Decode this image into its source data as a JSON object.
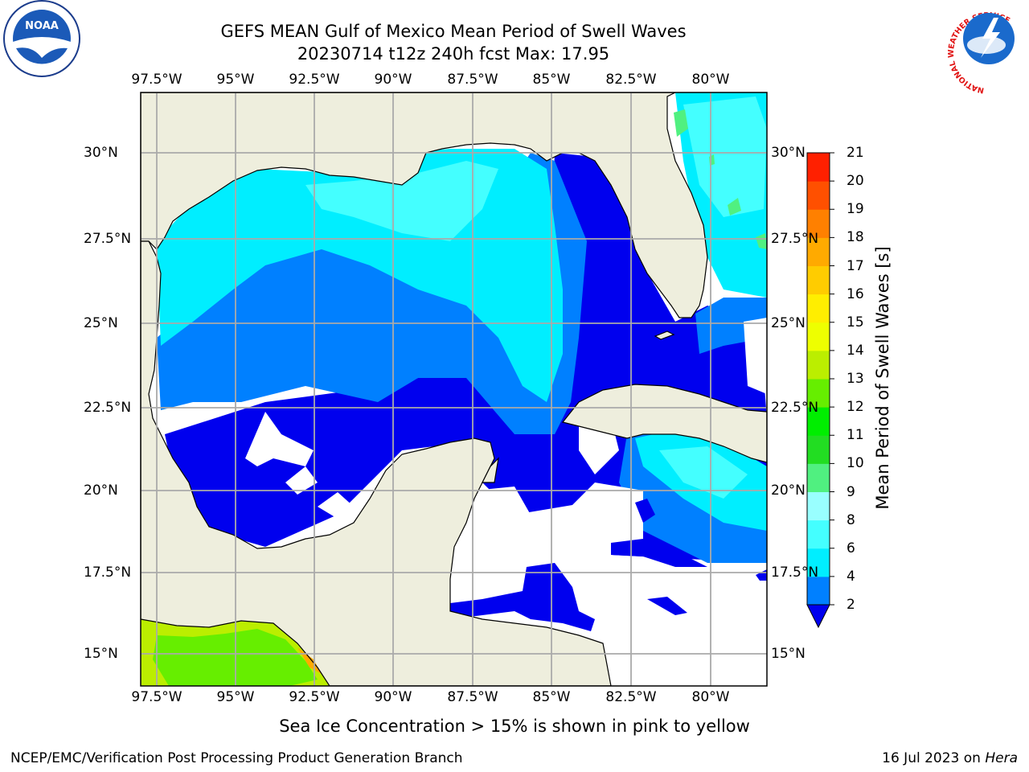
{
  "title": {
    "line1": "GEFS MEAN Gulf of Mexico Mean Period of Swell Waves",
    "line2": "20230714 t12z 240h fcst   Max: 17.95"
  },
  "map": {
    "lon_ticks": [
      "97.5°W",
      "95°W",
      "92.5°W",
      "90°W",
      "87.5°W",
      "85°W",
      "82.5°W",
      "80°W"
    ],
    "lat_ticks": [
      "30°N",
      "27.5°N",
      "25°N",
      "22.5°N",
      "20°N",
      "17.5°N",
      "15°N"
    ],
    "land_color": "#eeeedd",
    "grid": true
  },
  "colorbar": {
    "title": "Mean Period of Swell Waves [s]",
    "levels": [
      "2",
      "4",
      "6",
      "8",
      "9",
      "10",
      "11",
      "12",
      "13",
      "14",
      "15",
      "16",
      "17",
      "18",
      "19",
      "20",
      "21"
    ],
    "colors": [
      "#0000ee",
      "#0080ff",
      "#00eeff",
      "#44ffff",
      "#99ffff",
      "#50f080",
      "#22dd22",
      "#00ee00",
      "#66ee00",
      "#bbee00",
      "#eeff00",
      "#ffee00",
      "#ffcc00",
      "#ffaa00",
      "#ff8000",
      "#ff5000",
      "#ff2000",
      "#ff0000"
    ]
  },
  "note": "Sea Ice Concentration > 15% is shown in pink to yellow",
  "footer": {
    "left": "NCEP/EMC/Verification Post Processing Product Generation Branch",
    "right_date": "16 Jul 2023 on ",
    "right_host": "Hera"
  },
  "logos": {
    "noaa": "NOAA",
    "noaa_ring": "NATIONAL OCEANIC AND ATMOSPHERIC ADMINISTRATION · U.S. DEPARTMENT OF COMMERCE",
    "nws_ring": "NATIONAL WEATHER SERVICE"
  }
}
